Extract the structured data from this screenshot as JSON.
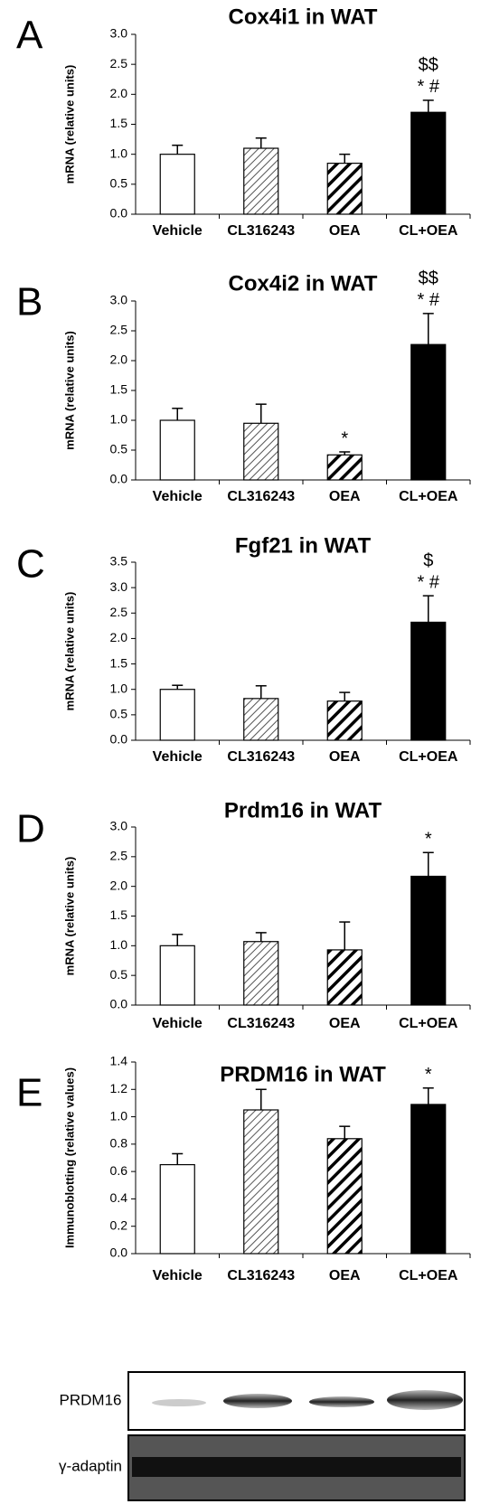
{
  "chart_data": [
    {
      "type": "bar",
      "panel_label": "A",
      "title": "Cox4i1 in WAT",
      "ylabel": "mRNA (relative units)",
      "categories": [
        "Vehicle",
        "CL316243",
        "OEA",
        "CL+OEA"
      ],
      "values": [
        1.0,
        1.1,
        0.85,
        1.7
      ],
      "errors": [
        0.15,
        0.17,
        0.15,
        0.2
      ],
      "bar_styles": [
        "solid-white",
        "hatch-thin",
        "hatch-thick",
        "solid-black"
      ],
      "annotations": [
        null,
        null,
        null,
        [
          "$$",
          "* #"
        ]
      ],
      "ylim": [
        0,
        3
      ],
      "yticks": [
        {
          "value": 0,
          "label": "0.0"
        },
        0.5,
        {
          "value": 1,
          "label": "1.0"
        },
        1.5,
        {
          "value": 2,
          "label": "2.0"
        },
        2.5,
        {
          "value": 3,
          "label": "3.0"
        }
      ],
      "grid": false
    },
    {
      "type": "bar",
      "panel_label": "B",
      "title": "Cox4i2 in WAT",
      "ylabel": "mRNA (relative units)",
      "categories": [
        "Vehicle",
        "CL316243",
        "OEA",
        "CL+OEA"
      ],
      "values": [
        1.0,
        0.95,
        0.42,
        2.27
      ],
      "errors": [
        0.2,
        0.32,
        0.05,
        0.52
      ],
      "bar_styles": [
        "solid-white",
        "hatch-thin",
        "hatch-thick",
        "solid-black"
      ],
      "annotations": [
        null,
        null,
        [
          "*"
        ],
        [
          "$$",
          "* #"
        ]
      ],
      "ylim": [
        0,
        3
      ],
      "yticks": [
        {
          "value": 0,
          "label": "0.0"
        },
        0.5,
        {
          "value": 1,
          "label": "1.0"
        },
        1.5,
        {
          "value": 2,
          "label": "2.0"
        },
        2.5,
        {
          "value": 3,
          "label": "3.0"
        }
      ],
      "grid": false
    },
    {
      "type": "bar",
      "panel_label": "C",
      "title": "Fgf21 in WAT",
      "ylabel": "mRNA (relative units)",
      "categories": [
        "Vehicle",
        "CL316243",
        "OEA",
        "CL+OEA"
      ],
      "values": [
        1.0,
        0.82,
        0.77,
        2.32
      ],
      "errors": [
        0.08,
        0.25,
        0.17,
        0.52
      ],
      "bar_styles": [
        "solid-white",
        "hatch-thin",
        "hatch-thick",
        "solid-black"
      ],
      "annotations": [
        null,
        null,
        null,
        [
          "$",
          "* #"
        ]
      ],
      "ylim": [
        0,
        3.5
      ],
      "yticks": [
        {
          "value": 0,
          "label": "0.0"
        },
        0.5,
        {
          "value": 1,
          "label": "1.0"
        },
        1.5,
        {
          "value": 2,
          "label": "2.0"
        },
        2.5,
        {
          "value": 3,
          "label": "3.0"
        },
        3.5
      ],
      "grid": false
    },
    {
      "type": "bar",
      "panel_label": "D",
      "title": "Prdm16 in WAT",
      "ylabel": "mRNA (relative units)",
      "categories": [
        "Vehicle",
        "CL316243",
        "OEA",
        "CL+OEA"
      ],
      "values": [
        1.0,
        1.07,
        0.93,
        2.17
      ],
      "errors": [
        0.19,
        0.15,
        0.47,
        0.4
      ],
      "bar_styles": [
        "solid-white",
        "hatch-thin",
        "hatch-thick",
        "solid-black"
      ],
      "annotations": [
        null,
        null,
        null,
        [
          "*"
        ]
      ],
      "ylim": [
        0,
        3
      ],
      "yticks": [
        {
          "value": 0,
          "label": "0.0"
        },
        0.5,
        {
          "value": 1,
          "label": "1.0"
        },
        1.5,
        {
          "value": 2,
          "label": "2.0"
        },
        2.5,
        {
          "value": 3,
          "label": "3.0"
        }
      ],
      "grid": false
    },
    {
      "type": "bar",
      "panel_label": "E",
      "title": "PRDM16 in WAT",
      "ylabel": "Immunoblotting (relative values)",
      "categories": [
        "Vehicle",
        "CL316243",
        "OEA",
        "CL+OEA"
      ],
      "values": [
        0.65,
        1.05,
        0.84,
        1.09
      ],
      "errors": [
        0.08,
        0.15,
        0.09,
        0.12
      ],
      "bar_styles": [
        "solid-white",
        "hatch-thin",
        "hatch-thick",
        "solid-black"
      ],
      "annotations": [
        null,
        null,
        null,
        [
          "*"
        ]
      ],
      "ylim": [
        0,
        1.4
      ],
      "yticks": [
        {
          "value": 0,
          "label": "0.0"
        },
        {
          "value": 0.2,
          "label": "0.2"
        },
        {
          "value": 0.4,
          "label": "0.4"
        },
        {
          "value": 0.6,
          "label": "0.6"
        },
        {
          "value": 0.8,
          "label": "0.8"
        },
        {
          "value": 1,
          "label": "1.0"
        },
        {
          "value": 1.2,
          "label": "1.2"
        },
        {
          "value": 1.4,
          "label": "1.4"
        }
      ],
      "grid": false
    }
  ],
  "blot": {
    "labels": [
      "PRDM16",
      "γ-adaptin"
    ]
  }
}
